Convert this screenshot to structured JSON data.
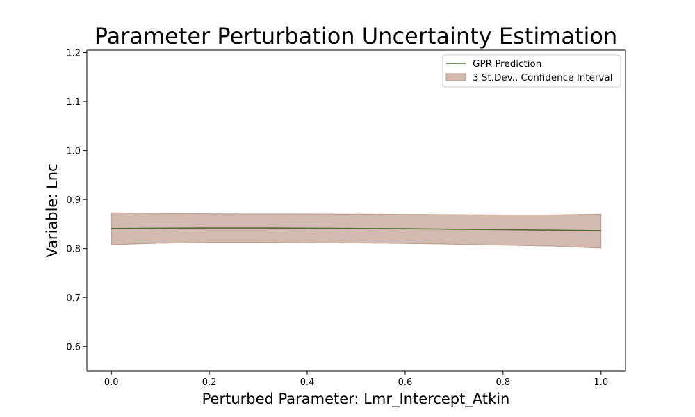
{
  "chart_data": {
    "type": "line",
    "title": "Parameter Perturbation Uncertainty Estimation",
    "xlabel": "Perturbed Parameter: Lmr_Intercept_Atkin",
    "ylabel": "Variable: Lnc",
    "xlim": [
      -0.05,
      1.05
    ],
    "ylim": [
      0.55,
      1.205
    ],
    "xticks": [
      0.0,
      0.2,
      0.4,
      0.6,
      0.8,
      1.0
    ],
    "xtick_labels": [
      "0.0",
      "0.2",
      "0.4",
      "0.6",
      "0.8",
      "1.0"
    ],
    "yticks": [
      0.6,
      0.7,
      0.8,
      0.9,
      1.0,
      1.1,
      1.2
    ],
    "ytick_labels": [
      "0.6",
      "0.7",
      "0.8",
      "0.9",
      "1.0",
      "1.1",
      "1.2"
    ],
    "grid": false,
    "legend_position": "top-right",
    "series": [
      {
        "name": "GPR Prediction",
        "kind": "line",
        "color": "#556b2f",
        "x": [
          0.0,
          0.1,
          0.2,
          0.3,
          0.4,
          0.5,
          0.6,
          0.7,
          0.8,
          0.9,
          1.0
        ],
        "y": [
          0.841,
          0.8415,
          0.842,
          0.842,
          0.8415,
          0.841,
          0.8405,
          0.8395,
          0.8385,
          0.8375,
          0.8365
        ]
      },
      {
        "name": "3 St.Dev., Confidence Interval",
        "kind": "band",
        "color": "#b48c7c",
        "x": [
          0.0,
          0.1,
          0.2,
          0.3,
          0.4,
          0.5,
          0.6,
          0.7,
          0.8,
          0.9,
          1.0
        ],
        "lower": [
          0.808,
          0.811,
          0.8125,
          0.8125,
          0.812,
          0.8115,
          0.8105,
          0.809,
          0.807,
          0.805,
          0.801
        ],
        "upper": [
          0.873,
          0.8715,
          0.871,
          0.8705,
          0.8705,
          0.87,
          0.8695,
          0.869,
          0.8685,
          0.8685,
          0.87
        ]
      }
    ]
  }
}
